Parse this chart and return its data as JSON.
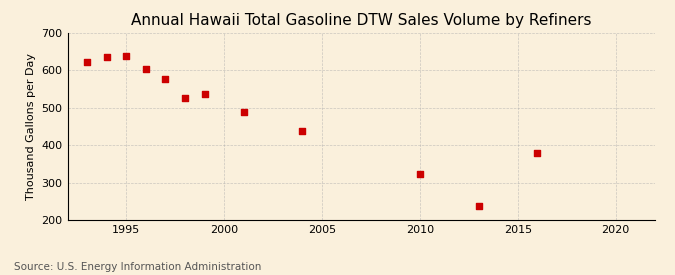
{
  "title": "Annual Hawaii Total Gasoline DTW Sales Volume by Refiners",
  "ylabel": "Thousand Gallons per Day",
  "source": "Source: U.S. Energy Information Administration",
  "background_color": "#faf0dc",
  "years": [
    1993,
    1994,
    1995,
    1996,
    1997,
    1998,
    1999,
    2001,
    2004,
    2010,
    2013,
    2016
  ],
  "values": [
    623,
    635,
    638,
    603,
    578,
    527,
    538,
    490,
    437,
    322,
    237,
    380
  ],
  "xlim": [
    1992,
    2022
  ],
  "ylim": [
    200,
    700
  ],
  "yticks": [
    200,
    300,
    400,
    500,
    600,
    700
  ],
  "xticks": [
    1995,
    2000,
    2005,
    2010,
    2015,
    2020
  ],
  "marker_color": "#cc0000",
  "marker": "s",
  "marker_size": 4,
  "title_fontsize": 11,
  "label_fontsize": 8,
  "tick_fontsize": 8,
  "source_fontsize": 7.5,
  "grid_color": "#aaaaaa",
  "grid_alpha": 0.6,
  "grid_linewidth": 0.5
}
